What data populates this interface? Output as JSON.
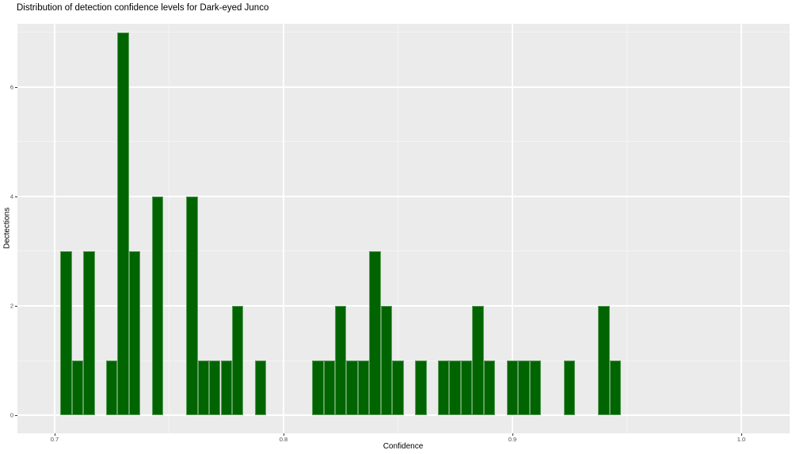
{
  "chart_data": {
    "type": "bar",
    "subtype": "histogram",
    "title": "Distribution of detection confidence levels for Dark-eyed Junco",
    "xlabel": "Confidence",
    "ylabel": "Dectections",
    "bin_width": 0.005,
    "bin_centers": [
      0.705,
      0.71,
      0.715,
      0.725,
      0.73,
      0.735,
      0.745,
      0.76,
      0.765,
      0.77,
      0.775,
      0.78,
      0.79,
      0.815,
      0.82,
      0.825,
      0.83,
      0.835,
      0.84,
      0.845,
      0.85,
      0.86,
      0.87,
      0.875,
      0.88,
      0.885,
      0.89,
      0.9,
      0.905,
      0.91,
      0.925,
      0.94,
      0.945
    ],
    "counts": [
      3,
      1,
      3,
      1,
      7,
      3,
      4,
      4,
      1,
      1,
      1,
      2,
      1,
      1,
      1,
      2,
      1,
      1,
      3,
      2,
      1,
      1,
      1,
      1,
      1,
      2,
      1,
      1,
      1,
      1,
      1,
      2,
      1
    ],
    "total_detections": 58,
    "x_ticks": [
      0.7,
      0.8,
      0.9,
      1.0
    ],
    "x_tick_labels": [
      "0.7",
      "0.8",
      "0.9",
      "1.0"
    ],
    "x_minor_ticks": [
      0.75,
      0.85,
      0.95
    ],
    "y_ticks": [
      0,
      2,
      4,
      6
    ],
    "y_tick_labels": [
      "0",
      "2",
      "4",
      "6"
    ],
    "y_minor_ticks": [
      1,
      3,
      5,
      7
    ],
    "xlim": [
      0.68374,
      1.02113
    ],
    "ylim": [
      -0.333,
      7.159
    ],
    "grid": true,
    "legend_position": "none",
    "colors": {
      "bar_fill": "#006400",
      "bar_edge": "#5f9e5f",
      "panel_background": "#EBEBEB",
      "grid_major": "#FFFFFF",
      "grid_minor": "#F4F4F4",
      "tick_label": "#4D4D4D",
      "tick_mark": "#333333",
      "title_text": "#000000"
    }
  }
}
